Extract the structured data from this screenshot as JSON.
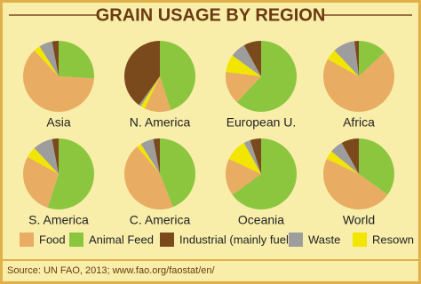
{
  "chart_data": {
    "type": "pie",
    "title": "GRAIN USAGE BY REGION",
    "source": "Source: UN FAO, 2013; www.fao.org/faostat/en/",
    "categories": [
      "Animal Feed",
      "Food",
      "Resown",
      "Waste",
      "Industrial (mainly fuel)"
    ],
    "colors": [
      "#8cc63f",
      "#e8ad62",
      "#f2e500",
      "#9d9d9d",
      "#7b4a1c"
    ],
    "legend_order": [
      1,
      0,
      4,
      3,
      2
    ],
    "series": [
      {
        "name": "Asia",
        "values": [
          26,
          62,
          3,
          6,
          3
        ]
      },
      {
        "name": "N. America",
        "values": [
          45,
          12,
          2,
          1,
          40
        ]
      },
      {
        "name": "European U.",
        "values": [
          62,
          15,
          8,
          7,
          8
        ]
      },
      {
        "name": "Africa",
        "values": [
          13,
          70,
          5,
          10,
          2
        ]
      },
      {
        "name": "S. America",
        "values": [
          55,
          28,
          5,
          9,
          3
        ]
      },
      {
        "name": "C. America",
        "values": [
          44,
          45,
          2,
          6,
          3
        ]
      },
      {
        "name": "Oceania",
        "values": [
          65,
          17,
          10,
          3,
          5
        ]
      },
      {
        "name": "World",
        "values": [
          35,
          47,
          4,
          6,
          8
        ]
      }
    ]
  }
}
